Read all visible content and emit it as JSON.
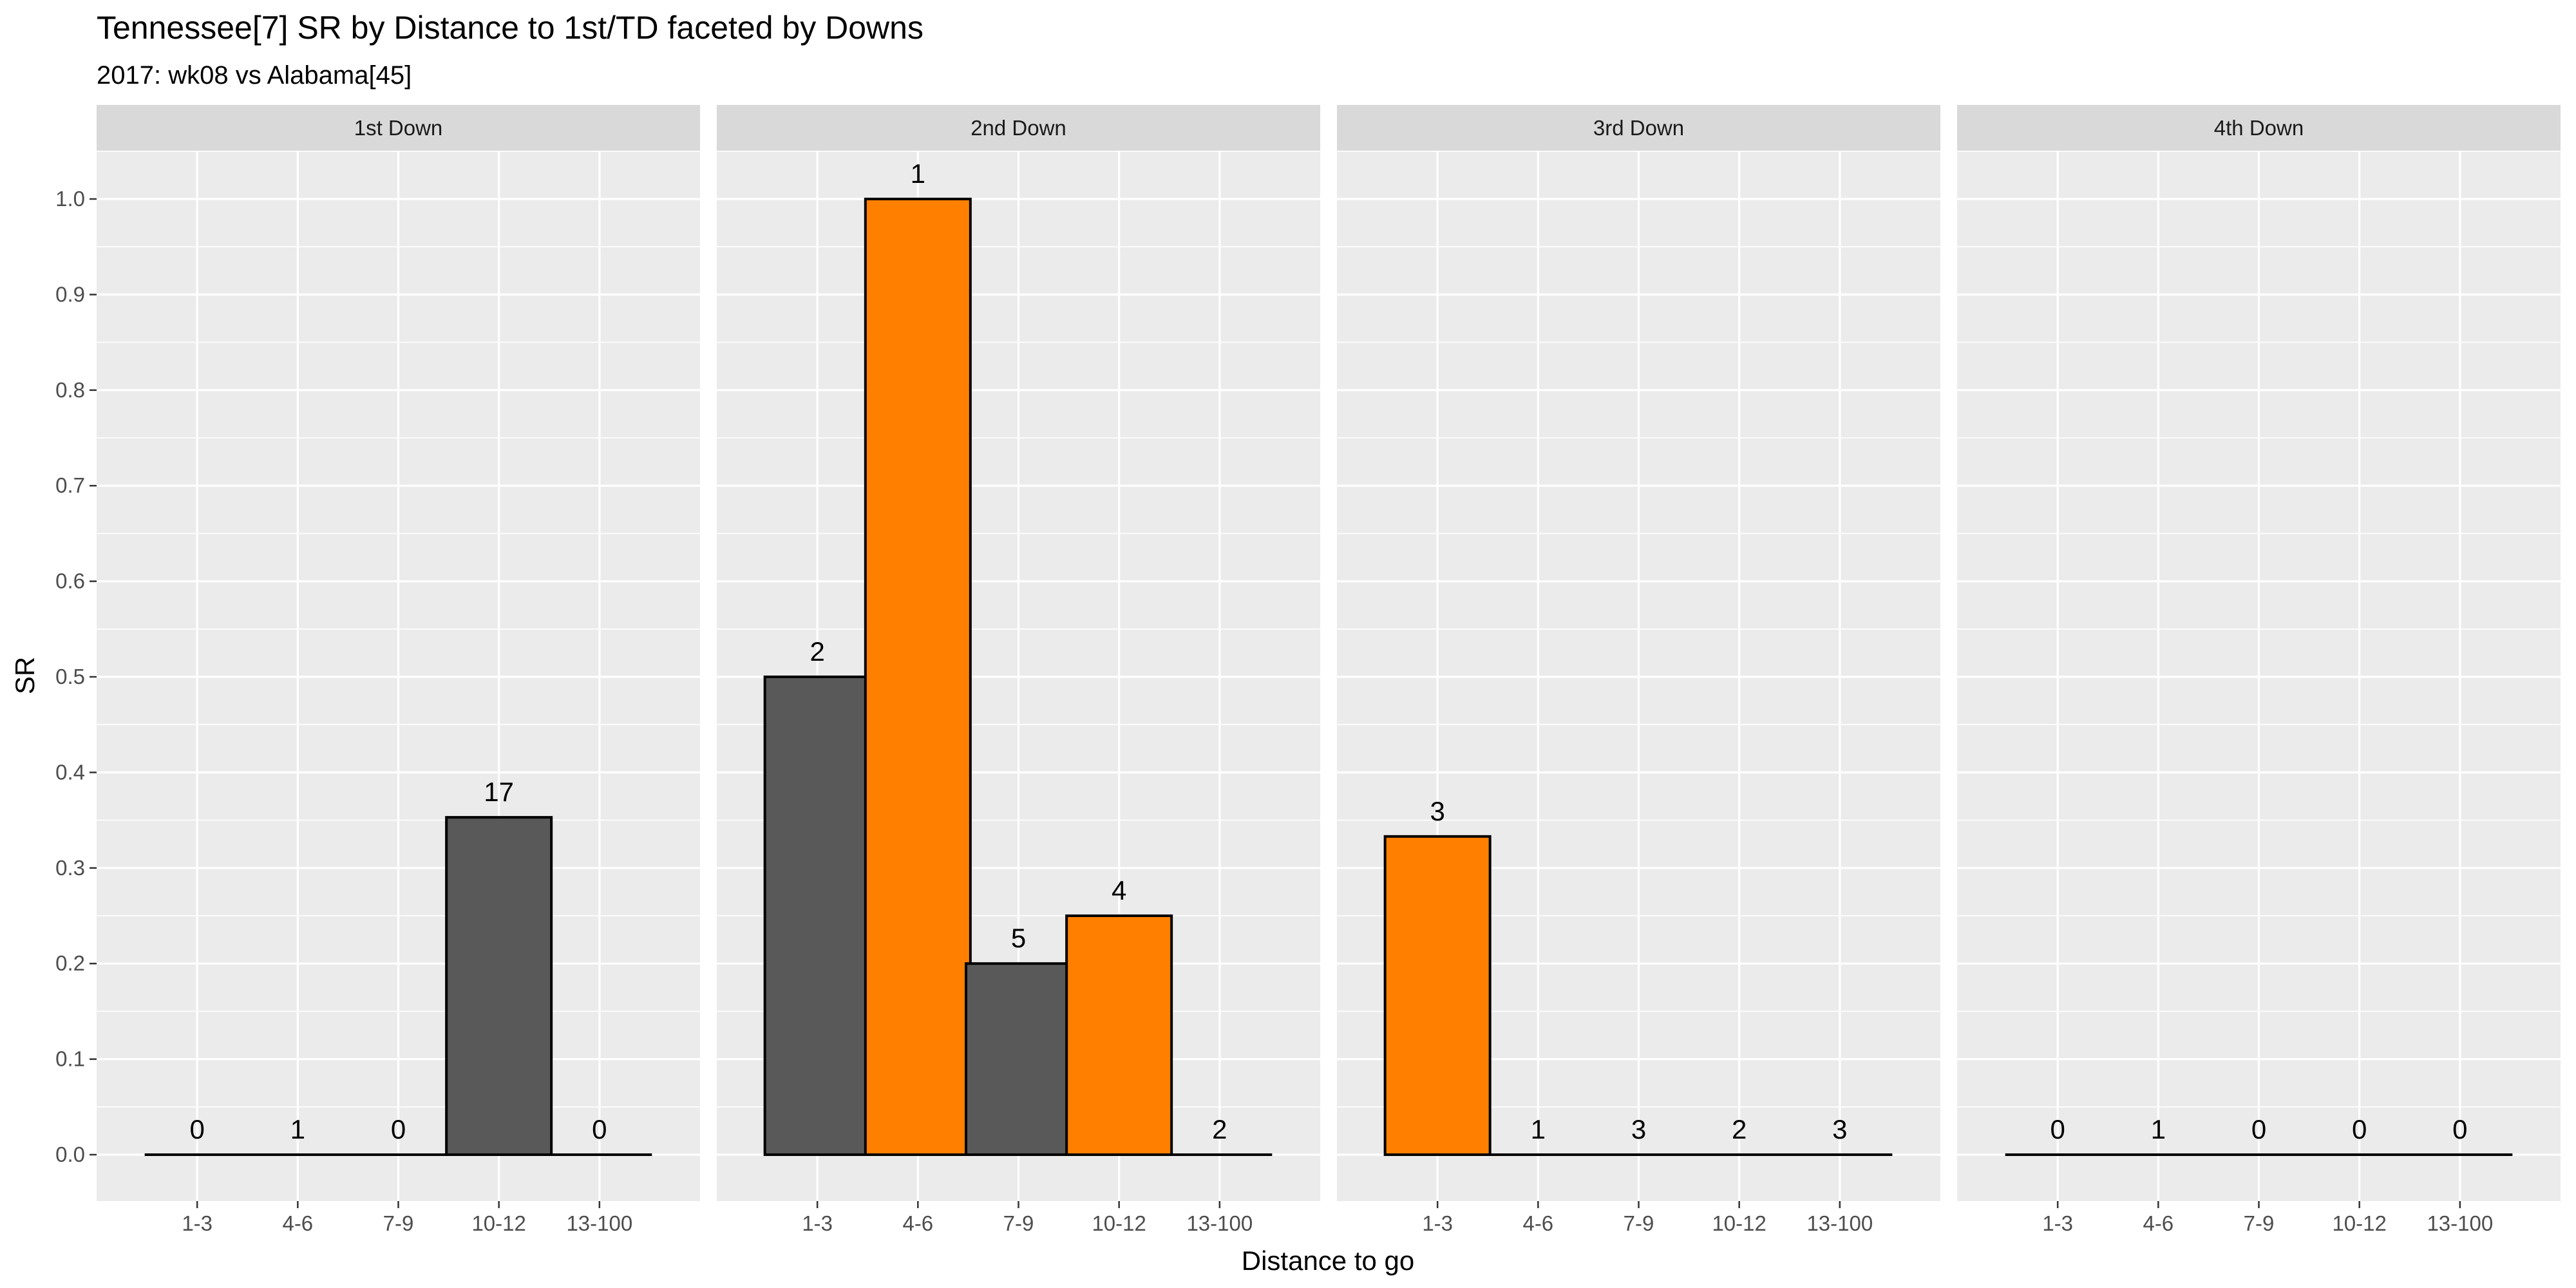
{
  "chart_data": {
    "type": "bar",
    "title": "Tennessee[7] SR by Distance to 1st/TD faceted by Downs",
    "subtitle": "2017: wk08 vs Alabama[45]",
    "xlabel": "Distance to go",
    "ylabel": "SR",
    "ylim": [
      0,
      1.0
    ],
    "yticks": [
      "0.0",
      "0.1",
      "0.2",
      "0.3",
      "0.4",
      "0.5",
      "0.6",
      "0.7",
      "0.8",
      "0.9",
      "1.0"
    ],
    "categories": [
      "1-3",
      "4-6",
      "7-9",
      "10-12",
      "13-100"
    ],
    "colors": {
      "panel": "#ebebeb",
      "strip": "#d9d9d9",
      "grid": "#ffffff",
      "dark_bar": "#595959",
      "orange_bar": "#ff8000",
      "bar_outline": "#000000"
    },
    "facets": [
      {
        "name": "1st Down",
        "values": [
          0,
          0,
          0,
          0.353,
          0
        ],
        "labels": [
          "0",
          "1",
          "0",
          "17",
          "0"
        ],
        "fills": [
          "dark",
          "dark",
          "dark",
          "dark",
          "dark"
        ]
      },
      {
        "name": "2nd Down",
        "values": [
          0.5,
          1.0,
          0.2,
          0.25,
          0
        ],
        "labels": [
          "2",
          "1",
          "5",
          "4",
          "2"
        ],
        "fills": [
          "dark",
          "orange",
          "dark",
          "orange",
          "dark"
        ]
      },
      {
        "name": "3rd Down",
        "values": [
          0.333,
          0,
          0,
          0,
          0
        ],
        "labels": [
          "3",
          "1",
          "3",
          "2",
          "3"
        ],
        "fills": [
          "orange",
          "dark",
          "dark",
          "dark",
          "dark"
        ]
      },
      {
        "name": "4th Down",
        "values": [
          0,
          0,
          0,
          0,
          0
        ],
        "labels": [
          "0",
          "1",
          "0",
          "0",
          "0"
        ],
        "fills": [
          "dark",
          "dark",
          "dark",
          "dark",
          "dark"
        ]
      }
    ]
  }
}
